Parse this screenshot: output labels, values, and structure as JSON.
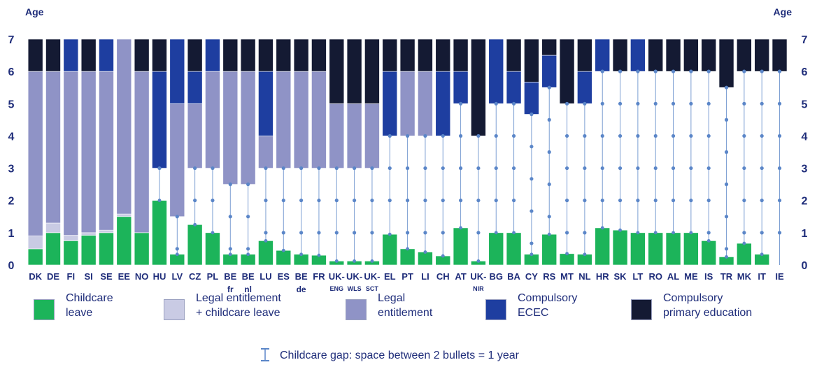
{
  "chart_data": {
    "type": "bar",
    "ylabel_left": "Age",
    "ylabel_right": "Age",
    "ylim": [
      0,
      7
    ],
    "yticks": [
      "0",
      "1",
      "2",
      "3",
      "4",
      "5",
      "6",
      "7"
    ],
    "categories": [
      [
        "DK"
      ],
      [
        "DE"
      ],
      [
        "FI"
      ],
      [
        "SI"
      ],
      [
        "SE"
      ],
      [
        "EE"
      ],
      [
        "NO"
      ],
      [
        "HU"
      ],
      [
        "LV"
      ],
      [
        "CZ"
      ],
      [
        "PL"
      ],
      [
        "BE",
        "fr"
      ],
      [
        "BE",
        "nl"
      ],
      [
        "LU"
      ],
      [
        "ES"
      ],
      [
        "BE",
        "de"
      ],
      [
        "FR"
      ],
      [
        "UK-",
        "ENG"
      ],
      [
        "UK-",
        "WLS"
      ],
      [
        "UK-",
        "SCT"
      ],
      [
        "EL"
      ],
      [
        "PT"
      ],
      [
        "LI"
      ],
      [
        "CH"
      ],
      [
        "AT"
      ],
      [
        "UK-",
        "NIR"
      ],
      [
        "BG"
      ],
      [
        "BA"
      ],
      [
        "CY"
      ],
      [
        "RS"
      ],
      [
        "MT"
      ],
      [
        "NL"
      ],
      [
        "HR"
      ],
      [
        "SK"
      ],
      [
        "LT"
      ],
      [
        "RO"
      ],
      [
        "AL"
      ],
      [
        "ME"
      ],
      [
        "IS"
      ],
      [
        "TR"
      ],
      [
        "MK"
      ],
      [
        "IT"
      ],
      [
        "IE"
      ]
    ],
    "colors": {
      "childcare_leave": "#1cb45a",
      "legal_plus_leave": "#c9cbe4",
      "legal_entitlement": "#8f93c6",
      "compulsory_ecec": "#1e3ea0",
      "compulsory_primary": "#141a33",
      "gap": "#5b86c8",
      "axis_text": "#1f2d7a"
    },
    "segments": [
      [
        [
          "childcare_leave",
          0,
          0.5
        ],
        [
          "legal_plus_leave",
          0.5,
          0.9
        ],
        [
          "legal_entitlement",
          0.9,
          6
        ],
        [
          "compulsory_primary",
          6,
          7
        ]
      ],
      [
        [
          "childcare_leave",
          0,
          1
        ],
        [
          "legal_plus_leave",
          1,
          1.3
        ],
        [
          "legal_entitlement",
          1.3,
          6
        ],
        [
          "compulsory_primary",
          6,
          7
        ]
      ],
      [
        [
          "childcare_leave",
          0,
          0.75
        ],
        [
          "legal_plus_leave",
          0.75,
          0.92
        ],
        [
          "legal_entitlement",
          0.92,
          6
        ],
        [
          "compulsory_ecec",
          6,
          7
        ]
      ],
      [
        [
          "childcare_leave",
          0,
          0.92
        ],
        [
          "legal_plus_leave",
          0.92,
          1
        ],
        [
          "legal_entitlement",
          1,
          6
        ],
        [
          "compulsory_primary",
          6,
          7
        ]
      ],
      [
        [
          "childcare_leave",
          0,
          1
        ],
        [
          "legal_plus_leave",
          1,
          1.08
        ],
        [
          "legal_entitlement",
          1.08,
          6
        ],
        [
          "compulsory_ecec",
          6,
          7
        ]
      ],
      [
        [
          "childcare_leave",
          0,
          1.5
        ],
        [
          "legal_plus_leave",
          1.5,
          1.58
        ],
        [
          "legal_entitlement",
          1.58,
          7
        ]
      ],
      [
        [
          "childcare_leave",
          0,
          1
        ],
        [
          "legal_entitlement",
          1,
          6
        ],
        [
          "compulsory_primary",
          6,
          7
        ]
      ],
      [
        [
          "childcare_leave",
          0,
          2
        ],
        [
          "compulsory_ecec",
          3,
          6
        ],
        [
          "compulsory_primary",
          6,
          7
        ]
      ],
      [
        [
          "childcare_leave",
          0,
          0.33
        ],
        [
          "legal_entitlement",
          1.5,
          5
        ],
        [
          "compulsory_ecec",
          5,
          7
        ]
      ],
      [
        [
          "childcare_leave",
          0,
          1.25
        ],
        [
          "legal_entitlement",
          3,
          5
        ],
        [
          "compulsory_ecec",
          5,
          6
        ],
        [
          "compulsory_primary",
          6,
          7
        ]
      ],
      [
        [
          "childcare_leave",
          0,
          1
        ],
        [
          "legal_entitlement",
          3,
          6
        ],
        [
          "compulsory_ecec",
          6,
          7
        ]
      ],
      [
        [
          "childcare_leave",
          0,
          0.33
        ],
        [
          "legal_entitlement",
          2.5,
          6
        ],
        [
          "compulsory_primary",
          6,
          7
        ]
      ],
      [
        [
          "childcare_leave",
          0,
          0.33
        ],
        [
          "legal_entitlement",
          2.5,
          6
        ],
        [
          "compulsory_primary",
          6,
          7
        ]
      ],
      [
        [
          "childcare_leave",
          0,
          0.75
        ],
        [
          "legal_entitlement",
          3,
          4
        ],
        [
          "compulsory_ecec",
          4,
          6
        ],
        [
          "compulsory_primary",
          6,
          7
        ]
      ],
      [
        [
          "childcare_leave",
          0,
          0.45
        ],
        [
          "legal_entitlement",
          3,
          6
        ],
        [
          "compulsory_primary",
          6,
          7
        ]
      ],
      [
        [
          "childcare_leave",
          0,
          0.33
        ],
        [
          "legal_entitlement",
          3,
          6
        ],
        [
          "compulsory_primary",
          6,
          7
        ]
      ],
      [
        [
          "childcare_leave",
          0,
          0.3
        ],
        [
          "legal_entitlement",
          3,
          6
        ],
        [
          "compulsory_primary",
          6,
          7
        ]
      ],
      [
        [
          "childcare_leave",
          0,
          0.12
        ],
        [
          "legal_entitlement",
          3,
          5
        ],
        [
          "compulsory_primary",
          5,
          7
        ]
      ],
      [
        [
          "childcare_leave",
          0,
          0.12
        ],
        [
          "legal_entitlement",
          3,
          5
        ],
        [
          "compulsory_primary",
          5,
          7
        ]
      ],
      [
        [
          "childcare_leave",
          0,
          0.12
        ],
        [
          "legal_entitlement",
          3,
          5
        ],
        [
          "compulsory_primary",
          5,
          7
        ]
      ],
      [
        [
          "childcare_leave",
          0,
          0.95
        ],
        [
          "compulsory_ecec",
          4,
          6
        ],
        [
          "compulsory_primary",
          6,
          7
        ]
      ],
      [
        [
          "childcare_leave",
          0,
          0.5
        ],
        [
          "legal_entitlement",
          4,
          6
        ],
        [
          "compulsory_primary",
          6,
          7
        ]
      ],
      [
        [
          "childcare_leave",
          0,
          0.4
        ],
        [
          "legal_entitlement",
          4,
          6
        ],
        [
          "compulsory_primary",
          6,
          7
        ]
      ],
      [
        [
          "childcare_leave",
          0,
          0.28
        ],
        [
          "compulsory_ecec",
          4,
          6
        ],
        [
          "compulsory_primary",
          6,
          7
        ]
      ],
      [
        [
          "childcare_leave",
          0,
          1.15
        ],
        [
          "compulsory_ecec",
          5,
          6
        ],
        [
          "compulsory_primary",
          6,
          7
        ]
      ],
      [
        [
          "childcare_leave",
          0,
          0.12
        ],
        [
          "compulsory_primary",
          4,
          7
        ]
      ],
      [
        [
          "childcare_leave",
          0,
          1
        ],
        [
          "compulsory_ecec",
          5,
          7
        ]
      ],
      [
        [
          "childcare_leave",
          0,
          1
        ],
        [
          "compulsory_ecec",
          5,
          6
        ],
        [
          "compulsory_primary",
          6,
          7
        ]
      ],
      [
        [
          "childcare_leave",
          0,
          0.33
        ],
        [
          "compulsory_ecec",
          4.67,
          5.67
        ],
        [
          "compulsory_primary",
          5.67,
          7
        ]
      ],
      [
        [
          "childcare_leave",
          0,
          0.95
        ],
        [
          "compulsory_ecec",
          5.5,
          6.5
        ],
        [
          "compulsory_primary",
          6.5,
          7
        ]
      ],
      [
        [
          "childcare_leave",
          0,
          0.35
        ],
        [
          "compulsory_primary",
          5,
          7
        ]
      ],
      [
        [
          "childcare_leave",
          0,
          0.33
        ],
        [
          "compulsory_ecec",
          5,
          6
        ],
        [
          "compulsory_primary",
          6,
          7
        ]
      ],
      [
        [
          "childcare_leave",
          0,
          1.15
        ],
        [
          "compulsory_ecec",
          6,
          7
        ]
      ],
      [
        [
          "childcare_leave",
          0,
          1.08
        ],
        [
          "compulsory_primary",
          6,
          7
        ]
      ],
      [
        [
          "childcare_leave",
          0,
          1
        ],
        [
          "compulsory_ecec",
          6,
          7
        ]
      ],
      [
        [
          "childcare_leave",
          0,
          1
        ],
        [
          "compulsory_primary",
          6,
          7
        ]
      ],
      [
        [
          "childcare_leave",
          0,
          1
        ],
        [
          "compulsory_primary",
          6,
          7
        ]
      ],
      [
        [
          "childcare_leave",
          0,
          1
        ],
        [
          "compulsory_primary",
          6,
          7
        ]
      ],
      [
        [
          "childcare_leave",
          0,
          0.75
        ],
        [
          "compulsory_primary",
          6,
          7
        ]
      ],
      [
        [
          "childcare_leave",
          0,
          0.25
        ],
        [
          "compulsory_primary",
          5.5,
          7
        ]
      ],
      [
        [
          "childcare_leave",
          0,
          0.67
        ],
        [
          "compulsory_primary",
          6,
          7
        ]
      ],
      [
        [
          "childcare_leave",
          0,
          0.33
        ],
        [
          "compulsory_primary",
          6,
          7
        ]
      ],
      [
        [
          "compulsory_primary",
          6,
          7
        ]
      ]
    ],
    "gaps": [
      null,
      null,
      null,
      null,
      null,
      null,
      null,
      [
        2,
        3
      ],
      [
        0.33,
        1.5
      ],
      [
        1.25,
        3
      ],
      [
        1,
        3
      ],
      [
        0.33,
        2.5
      ],
      [
        0.33,
        2.5
      ],
      [
        0.75,
        3
      ],
      [
        0.45,
        3
      ],
      [
        0.33,
        3
      ],
      [
        0.3,
        3
      ],
      [
        0.12,
        3
      ],
      [
        0.12,
        3
      ],
      [
        0.12,
        3
      ],
      [
        0.95,
        4
      ],
      [
        0.5,
        4
      ],
      [
        0.4,
        4
      ],
      [
        0.28,
        4
      ],
      [
        1.15,
        5
      ],
      [
        0.12,
        4
      ],
      [
        1,
        5
      ],
      [
        1,
        5
      ],
      [
        0.33,
        4.67
      ],
      [
        0.95,
        5.5
      ],
      [
        0.35,
        5
      ],
      [
        0.33,
        5
      ],
      [
        1.15,
        6
      ],
      [
        1.08,
        6
      ],
      [
        1,
        6
      ],
      [
        1,
        6
      ],
      [
        1,
        6
      ],
      [
        1,
        6
      ],
      [
        0.75,
        6
      ],
      [
        0.25,
        5.5
      ],
      [
        0.67,
        6
      ],
      [
        0.33,
        6
      ],
      [
        0,
        6
      ]
    ]
  },
  "legend": {
    "childcare_leave": "Childcare\nleave",
    "legal_plus_leave": "Legal entitlement\n+ childcare leave",
    "legal_entitlement": "Legal\nentitlement",
    "compulsory_ecec": "Compulsory\nECEC",
    "compulsory_primary": "Compulsory\nprimary education",
    "gap_note": "Childcare gap: space between 2 bullets = 1 year"
  }
}
